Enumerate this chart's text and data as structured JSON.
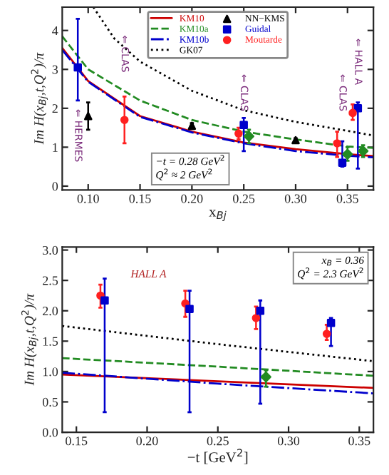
{
  "chart_data": [
    {
      "type": "line",
      "xlabel": "x$_{Bj}$",
      "ylabel": "Im H(x$_{Bj}$,t,Q$^{2}$)/π",
      "xlim": [
        0.075,
        0.375
      ],
      "ylim": [
        -0.1,
        4.6
      ],
      "xticks": [
        {
          "value": 0.1,
          "label": "0.10"
        },
        0.15,
        {
          "value": 0.2,
          "label": "0.20"
        },
        0.25,
        {
          "value": 0.3,
          "label": "0.30"
        },
        0.35
      ],
      "yticks": [
        0,
        1,
        2,
        3,
        4
      ],
      "legend": "top",
      "grid": false,
      "series": [
        {
          "name": "KM10",
          "color": "#cc0000",
          "line_style": "solid",
          "x": [
            0.075,
            0.1,
            0.15,
            0.2,
            0.25,
            0.3,
            0.35,
            0.375
          ],
          "values": [
            3.55,
            2.7,
            1.8,
            1.4,
            1.12,
            0.95,
            0.82,
            0.77
          ]
        },
        {
          "name": "KM10a",
          "color": "#228b22",
          "line_style": "dashed",
          "x": [
            0.075,
            0.1,
            0.15,
            0.2,
            0.25,
            0.3,
            0.35,
            0.375
          ],
          "values": [
            3.85,
            3.0,
            2.2,
            1.7,
            1.4,
            1.2,
            1.02,
            0.98
          ]
        },
        {
          "name": "KM10b",
          "color": "#0000cc",
          "line_style": "dashdot",
          "x": [
            0.075,
            0.1,
            0.15,
            0.2,
            0.25,
            0.3,
            0.35,
            0.375
          ],
          "values": [
            3.5,
            2.68,
            1.78,
            1.38,
            1.1,
            0.9,
            0.78,
            0.74
          ]
        },
        {
          "name": "GK07",
          "color": "#000000",
          "line_style": "dotted",
          "x": [
            0.105,
            0.125,
            0.15,
            0.2,
            0.25,
            0.3,
            0.35,
            0.375
          ],
          "values": [
            4.6,
            3.8,
            3.2,
            2.45,
            1.95,
            1.65,
            1.42,
            1.3
          ]
        },
        {
          "name": "NN−KMS",
          "type": "scatter",
          "marker": "triangle",
          "color": "#000000",
          "x": [
            0.1,
            0.2,
            0.3
          ],
          "values": [
            1.8,
            1.55,
            1.18
          ],
          "errors": [
            [
              1.45,
              2.15
            ],
            [
              1.48,
              1.62
            ],
            [
              1.13,
              1.23
            ]
          ]
        },
        {
          "name": "Guidal",
          "type": "scatter",
          "marker": "square",
          "color": "#0000cc",
          "x": [
            0.09,
            0.25,
            0.345,
            0.36
          ],
          "values": [
            3.05,
            1.57,
            0.6,
            2.0
          ],
          "errors": [
            [
              2.2,
              4.3
            ],
            [
              0.9,
              1.75
            ],
            [
              0.5,
              1.15
            ],
            [
              0.45,
              2.15
            ]
          ]
        },
        {
          "type": "scatter",
          "marker": "diamond",
          "color": "#228b22",
          "x": [
            0.255,
            0.35,
            0.365
          ],
          "values": [
            1.28,
            0.82,
            0.9
          ],
          "errors": [
            [
              1.1,
              1.45
            ],
            [
              0.65,
              1.0
            ],
            [
              0.75,
              1.05
            ]
          ]
        },
        {
          "name": "Moutarde",
          "type": "scatter",
          "marker": "circle",
          "color": "#ff2020",
          "x": [
            0.135,
            0.245,
            0.34,
            0.355
          ],
          "values": [
            1.7,
            1.35,
            1.1,
            1.88
          ],
          "errors": [
            [
              1.1,
              2.3
            ],
            [
              1.2,
              1.5
            ],
            [
              0.75,
              1.4
            ],
            [
              1.7,
              2.1
            ]
          ]
        }
      ],
      "annotations": [
        "⇐ HERMES",
        "⇐ CLAS",
        "⇐ CLAS",
        "⇐ CLAS",
        "⇐ HALL A",
        "−t = 0.28 GeV$^{2}$\nQ$^{2}$ ≈ 2 GeV$^{2}$"
      ]
    },
    {
      "type": "line",
      "xlabel": "−t [GeV$^{2}$]",
      "ylabel": "Im H(x$_{Bj}$,t,Q$^{2}$)/π",
      "xlim": [
        0.14,
        0.36
      ],
      "ylim": [
        0,
        3.05
      ],
      "xticks": [
        0.15,
        {
          "value": 0.2,
          "label": "0.20"
        },
        0.25,
        {
          "value": 0.3,
          "label": "0.30"
        },
        0.35
      ],
      "yticks": [
        {
          "value": 0,
          "label": "0.0"
        },
        0.5,
        {
          "value": 1,
          "label": "1.0"
        },
        1.5,
        {
          "value": 2,
          "label": "2.0"
        },
        2.5,
        {
          "value": 3,
          "label": "3.0"
        }
      ],
      "grid": false,
      "series": [
        {
          "color": "#cc0000",
          "line_style": "solid",
          "x": [
            0.14,
            0.25,
            0.36
          ],
          "values": [
            0.95,
            0.84,
            0.73
          ]
        },
        {
          "color": "#228b22",
          "line_style": "dashed",
          "x": [
            0.14,
            0.25,
            0.36
          ],
          "values": [
            1.22,
            1.08,
            0.93
          ]
        },
        {
          "color": "#0000cc",
          "line_style": "dashdot",
          "x": [
            0.14,
            0.25,
            0.36
          ],
          "values": [
            0.98,
            0.8,
            0.64
          ]
        },
        {
          "color": "#000000",
          "line_style": "dotted",
          "x": [
            0.14,
            0.25,
            0.36
          ],
          "values": [
            1.75,
            1.45,
            1.17
          ]
        },
        {
          "type": "scatter",
          "marker": "circle",
          "color": "#ff2020",
          "x": [
            0.167,
            0.227,
            0.277,
            0.327
          ],
          "values": [
            2.25,
            2.12,
            1.88,
            1.62
          ],
          "errors": [
            [
              2.05,
              2.43
            ],
            [
              1.9,
              2.33
            ],
            [
              1.7,
              2.07
            ],
            [
              1.52,
              1.77
            ]
          ]
        },
        {
          "type": "scatter",
          "marker": "square",
          "color": "#0000cc",
          "x": [
            0.17,
            0.23,
            0.28,
            0.33
          ],
          "values": [
            2.17,
            2.03,
            2.0,
            1.8
          ],
          "errors": [
            [
              0.33,
              2.53
            ],
            [
              0.33,
              2.33
            ],
            [
              0.47,
              2.17
            ],
            [
              1.42,
              1.88
            ]
          ]
        },
        {
          "type": "scatter",
          "marker": "diamond",
          "color": "#228b22",
          "x": [
            0.284
          ],
          "values": [
            0.91
          ],
          "errors": [
            [
              0.75,
              1.02
            ]
          ]
        }
      ],
      "annotations": [
        "HALL A",
        "x$_{B}$ = 0.36\nQ$^{2}$ = 2.3 GeV$^{2}$"
      ]
    }
  ]
}
